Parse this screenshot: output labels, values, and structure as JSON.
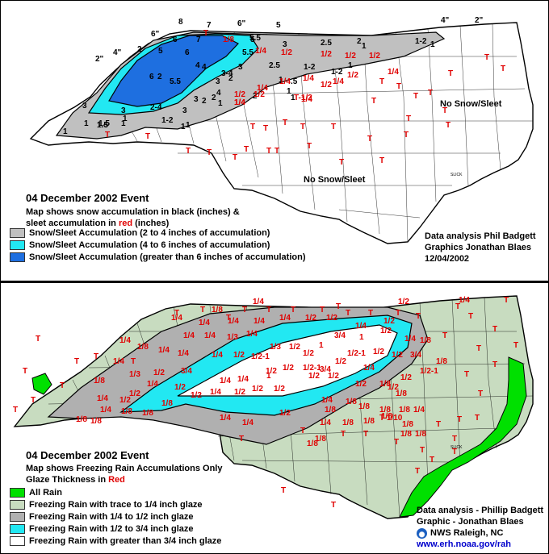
{
  "snow_map": {
    "title": "04 December 2002 Event",
    "desc_line1": "Map shows snow accumulation in black (inches) &",
    "desc_line2_pre": "sleet accumulation in",
    "desc_red_word": "red",
    "desc_line2_post": "(inches)",
    "legend": [
      {
        "label": "Snow/Sleet Accumulation (2 to 4 inches of accumulation)",
        "color": "#c0c0c0"
      },
      {
        "label": "Snow/Sleet Accumulation (4 to 6 inches of accumulation)",
        "color": "#22e8f2"
      },
      {
        "label": "Snow/Sleet Accumulation (greater than 6 inches of accumulation)",
        "color": "#1e6fe0"
      }
    ],
    "credits": [
      "Data analysis   Phil Badgett",
      "Graphics     Jonathan Blaes",
      "12/04/2002"
    ],
    "region_labels": [
      "No Snow/Sleet",
      "No Snow/Sleet"
    ],
    "snow_labels": [
      "8",
      "7",
      "6\"",
      "5",
      "5",
      "6\"",
      "4\"",
      "2\"",
      "4\"",
      "2\"",
      "6",
      "7",
      "5.5",
      "3",
      "2.5",
      "2",
      "1-2",
      "1",
      "5",
      "6",
      "4",
      "3",
      "2.5",
      "1-2",
      "1",
      "3",
      "4",
      "2",
      "1",
      "5.5",
      "2",
      "3-4",
      "2",
      "1",
      ".5",
      "4",
      "5.5",
      "6",
      "3",
      "3",
      "1",
      "1",
      "1.5",
      "1",
      "2",
      "1",
      "3",
      "2",
      "1",
      "1.5",
      "1",
      "1",
      "2-4",
      "2",
      "3",
      "1-2",
      "1",
      "1.5",
      "1-2",
      "1"
    ],
    "sleet_labels": [
      "1/8",
      "1/4",
      "1/2",
      "1/2",
      "1/2",
      "1/4",
      "1/4",
      "1/4",
      "1/4",
      "1/2",
      "1/4",
      "1/2",
      "1/2",
      "1/4",
      "1/2",
      "1/2",
      "1/4",
      "T-1/2",
      "T",
      "1/4",
      "T",
      "T",
      "T",
      "T",
      "T",
      "T",
      "T",
      "T",
      "T",
      "T",
      "T",
      "T",
      "T",
      "T",
      "T",
      "T",
      "T",
      "T",
      "T",
      "T",
      "T",
      "T",
      "T",
      "T",
      "T",
      "T",
      "T",
      "T",
      "T"
    ]
  },
  "ice_map": {
    "title": "04 December 2002 Event",
    "desc_line1": "Map shows Freezing Rain Accumulations Only",
    "desc_line2_pre": "Glaze Thickness in",
    "desc_red_word": "Red",
    "legend": [
      {
        "label": "All Rain",
        "color": "#00e000"
      },
      {
        "label": "Freezing Rain with trace to 1/4 inch glaze",
        "color": "#c8dcc0"
      },
      {
        "label": "Freezing Rain with 1/4 to 1/2 inch glaze",
        "color": "#b0b0b0"
      },
      {
        "label": "Freezing Rain with 1/2 to 3/4 inch glaze",
        "color": "#22e8f2"
      },
      {
        "label": "Freezing Rain with greater than 3/4 inch glaze",
        "color": "#ffffff"
      }
    ],
    "credits": [
      "Data analysis - Phillip Badgett",
      "Graphic - Jonathan Blaes"
    ],
    "office": "NWS Raleigh, NC",
    "url": "www.erh.noaa.gov/rah",
    "glaze_labels": [
      "1/4",
      "1/4",
      "1/2",
      "T",
      "1/8",
      "1/4",
      "1/4",
      "1/4",
      "1/4",
      "1/4",
      "1/2",
      "1/2",
      "1/4",
      "1/2",
      "3/4",
      "1/2",
      "1/4",
      "1/8",
      "1/4",
      "1/4",
      "1/3",
      "1/4",
      "1/3",
      "1/2",
      "1/2",
      "1",
      "1",
      "1/2-1",
      "1/2",
      "1/2",
      "3/4",
      "1/2-1",
      "1/4",
      "1/8",
      "1/4",
      "1/4",
      "1/4",
      "1/2",
      "1/2-1",
      "1/2",
      "1/2",
      "1/2-1",
      "3/4",
      "1/2",
      "1/4",
      "1/8",
      "1/4",
      "1/3",
      "1/2",
      "3/4",
      "1",
      "1/2",
      "1/2",
      "1/2",
      "1/2",
      "1/2",
      "1/4",
      "1/4",
      "1/8",
      "1/4",
      "1/2",
      "1/2",
      "1/4",
      "1/2",
      "1/2",
      "1/2",
      "1/4",
      "1/8",
      "1/8",
      "1/4",
      "1/2",
      "1/2",
      "1/8",
      "1/8",
      "1/8",
      "1/8",
      "1/8",
      "1/8",
      "1/4",
      "1/4",
      "1/8",
      "1/8",
      "1/4",
      "1/2",
      "1/4",
      "1/8",
      "1/8",
      "1/8",
      "1/8",
      "1/8",
      "1/4",
      "T-1/10",
      "1/8",
      "1/8",
      "1/8",
      "1/8",
      "1/8",
      "T",
      "T",
      "T",
      "T",
      "T",
      "T",
      "T",
      "T",
      "T",
      "T",
      "T",
      "T",
      "T",
      "T",
      "T",
      "T",
      "T",
      "T",
      "T",
      "T",
      "T",
      "T",
      "T",
      "T",
      "T",
      "T",
      "T",
      "T",
      "T",
      "T",
      "T",
      "T",
      "T",
      "T",
      "T",
      "T",
      "T",
      "T",
      "T",
      "T",
      "T",
      "T",
      "T",
      "T"
    ]
  }
}
